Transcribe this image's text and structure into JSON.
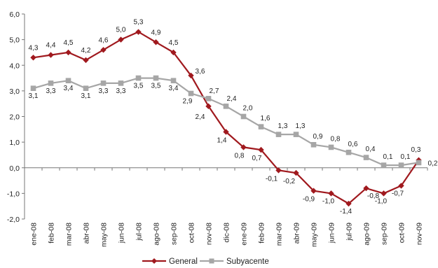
{
  "chart_data": {
    "type": "line",
    "title": "",
    "xlabel": "",
    "ylabel": "",
    "ylim": [
      -2.0,
      6.0
    ],
    "y_ticks": [
      "-2,0",
      "-1,0",
      "0,0",
      "1,0",
      "2,0",
      "3,0",
      "4,0",
      "5,0",
      "6,0"
    ],
    "y_tick_values": [
      -2,
      -1,
      0,
      1,
      2,
      3,
      4,
      5,
      6
    ],
    "grid": false,
    "legend_position": "bottom",
    "categories": [
      "ene-08",
      "feb-08",
      "mar-08",
      "abr-08",
      "may-08",
      "jun-08",
      "jul-08",
      "ago-08",
      "sep-08",
      "oct-08",
      "nov-08",
      "dic-08",
      "ene-09",
      "feb-09",
      "mar-09",
      "abr-09",
      "may-09",
      "jun-09",
      "jul-09",
      "ago-09",
      "sep-09",
      "oct-09",
      "nov-09"
    ],
    "series": [
      {
        "name": "General",
        "color": "#a0191e",
        "marker": "diamond",
        "values": [
          4.3,
          4.4,
          4.5,
          4.2,
          4.6,
          5.0,
          5.3,
          4.9,
          4.5,
          3.6,
          2.4,
          1.4,
          0.8,
          0.7,
          -0.1,
          -0.2,
          -0.9,
          -1.0,
          -1.4,
          -0.8,
          -1.0,
          -0.7,
          0.3
        ],
        "labels": [
          "4,3",
          "4,4",
          "4,5",
          "4,2",
          "4,6",
          "5,0",
          "5,3",
          "4,9",
          "4,5",
          "3,6",
          "2,4",
          "1,4",
          "0,8",
          "0,7",
          "-0,1",
          "-0,2",
          "-0,9",
          "-1,0",
          "-1,4",
          "-0,8",
          "-1,0",
          "-0,7",
          "0,3"
        ]
      },
      {
        "name": "Subyacente",
        "color": "#a6a6a6",
        "marker": "square",
        "values": [
          3.1,
          3.3,
          3.4,
          3.1,
          3.3,
          3.3,
          3.5,
          3.5,
          3.4,
          2.9,
          2.7,
          2.4,
          2.0,
          1.6,
          1.3,
          1.3,
          0.9,
          0.8,
          0.6,
          0.4,
          0.1,
          0.1,
          0.2
        ],
        "labels": [
          "3,1",
          "3,3",
          "3,4",
          "3,1",
          "3,3",
          "3,3",
          "3,5",
          "3,5",
          "3,4",
          "2,9",
          "2,7",
          "2,4",
          "2,0",
          "1,6",
          "1,3",
          "1,3",
          "0,9",
          "0,8",
          "0,6",
          "0,4",
          "0,1",
          "0,1",
          "0,2"
        ]
      }
    ]
  }
}
